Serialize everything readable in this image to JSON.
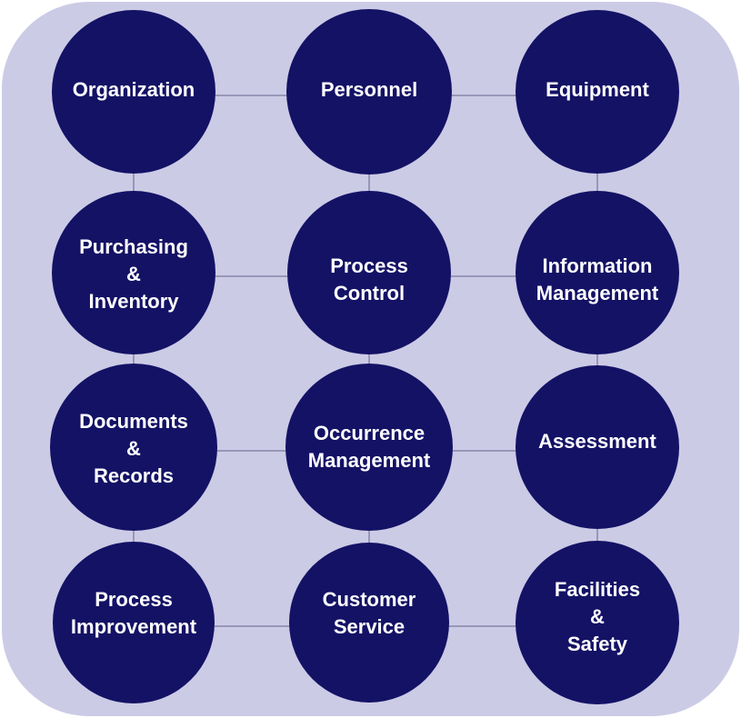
{
  "colors": {
    "panel": "#cccbe6",
    "node": "#141265",
    "text": "#ffffff",
    "connector": "#8886a8"
  },
  "nodes": [
    {
      "id": "organization",
      "lines": [
        "Organization"
      ]
    },
    {
      "id": "personnel",
      "lines": [
        "Personnel"
      ]
    },
    {
      "id": "equipment",
      "lines": [
        "Equipment"
      ]
    },
    {
      "id": "purchasing-inventory",
      "lines": [
        "Purchasing",
        "&",
        "Inventory"
      ]
    },
    {
      "id": "process-control",
      "lines": [
        "Process",
        "Control"
      ]
    },
    {
      "id": "information-management",
      "lines": [
        "Information",
        "Management"
      ]
    },
    {
      "id": "documents-records",
      "lines": [
        "Documents",
        "&",
        "Records"
      ]
    },
    {
      "id": "occurrence-management",
      "lines": [
        "Occurrence",
        "Management"
      ]
    },
    {
      "id": "assessment",
      "lines": [
        "Assessment"
      ]
    },
    {
      "id": "process-improvement",
      "lines": [
        "Process",
        "Improvement"
      ]
    },
    {
      "id": "customer-service",
      "lines": [
        "Customer",
        "Service"
      ]
    },
    {
      "id": "facilities-safety",
      "lines": [
        "Facilities",
        "&",
        "Safety"
      ]
    }
  ]
}
